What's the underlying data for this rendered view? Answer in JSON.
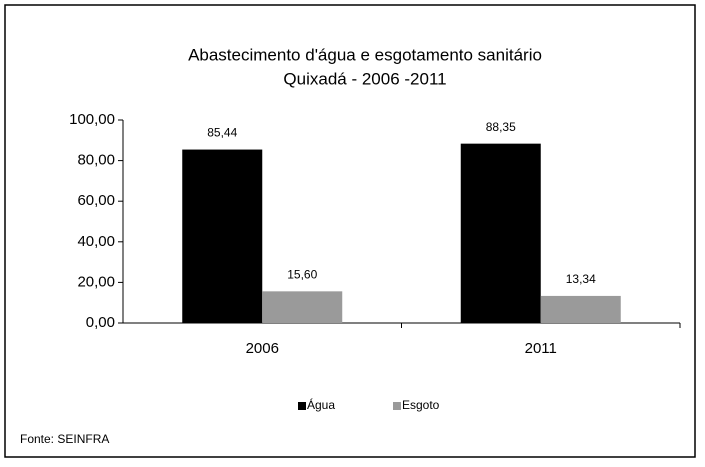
{
  "chart_data": {
    "type": "bar",
    "title": "Abastecimento d'água e esgotamento sanitário",
    "subtitle": "Quixadá - 2006 -2011",
    "categories": [
      "2006",
      "2011"
    ],
    "series": [
      {
        "name": "Água",
        "color": "#000000",
        "values": [
          85.44,
          88.35
        ],
        "value_labels": [
          "85,44",
          "88,35"
        ]
      },
      {
        "name": "Esgoto",
        "color": "#9a9a9a",
        "values": [
          15.6,
          13.34
        ],
        "value_labels": [
          "15,60",
          "13,34"
        ]
      }
    ],
    "ylim": [
      0,
      100
    ],
    "yticks": [
      {
        "value": 0,
        "label": "0,00"
      },
      {
        "value": 20,
        "label": "20,00"
      },
      {
        "value": 40,
        "label": "40,00"
      },
      {
        "value": 60,
        "label": "60,00"
      },
      {
        "value": 80,
        "label": "80,00"
      },
      {
        "value": 100,
        "label": "100,00"
      }
    ],
    "legend": "bottom",
    "source": "Fonte: SEINFRA"
  }
}
